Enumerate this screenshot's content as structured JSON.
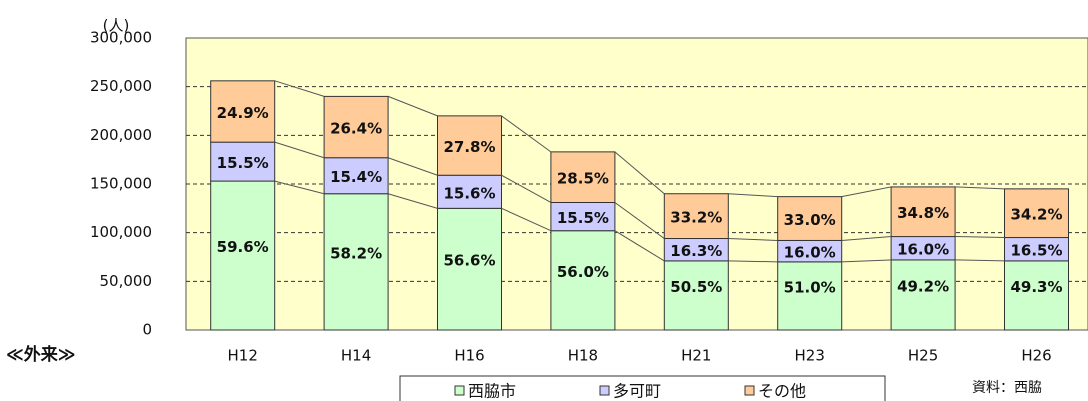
{
  "chart_data": {
    "type": "stacked_bar",
    "y_unit": "(人)",
    "section_label": "≪外来≫",
    "source": "資料：西脇",
    "categories": [
      "H12",
      "H14",
      "H16",
      "H18",
      "H21",
      "H23",
      "H25",
      "H26"
    ],
    "series": [
      {
        "name": "西脇市",
        "color": "#ccffcc",
        "values": [
          153000,
          140000,
          125000,
          102000,
          71000,
          70000,
          72000,
          71000
        ],
        "share_labels": [
          "59.6%",
          "58.2%",
          "56.6%",
          "56.0%",
          "50.5%",
          "51.0%",
          "49.2%",
          "49.3%"
        ]
      },
      {
        "name": "多可町",
        "color": "#ccccff",
        "values": [
          40000,
          37000,
          34000,
          29000,
          23000,
          22000,
          24000,
          24000
        ],
        "share_labels": [
          "15.5%",
          "15.4%",
          "15.6%",
          "15.5%",
          "16.3%",
          "16.0%",
          "16.0%",
          "16.5%"
        ]
      },
      {
        "name": "その他",
        "color": "#ffcc99",
        "values": [
          63000,
          63000,
          61000,
          52000,
          46000,
          45000,
          51000,
          50000
        ],
        "share_labels": [
          "24.9%",
          "26.4%",
          "27.8%",
          "28.5%",
          "33.2%",
          "33.0%",
          "34.8%",
          "34.2%"
        ]
      }
    ],
    "ylim": [
      0,
      300000
    ],
    "yticks": [
      {
        "value": 0,
        "label": "0"
      },
      {
        "value": 50000,
        "label": "50,000"
      },
      {
        "value": 100000,
        "label": "100,000"
      },
      {
        "value": 150000,
        "label": "150,000"
      },
      {
        "value": 200000,
        "label": "200,000"
      },
      {
        "value": 250000,
        "label": "250,000"
      },
      {
        "value": 300000,
        "label": "300,000"
      }
    ],
    "grid": true
  }
}
